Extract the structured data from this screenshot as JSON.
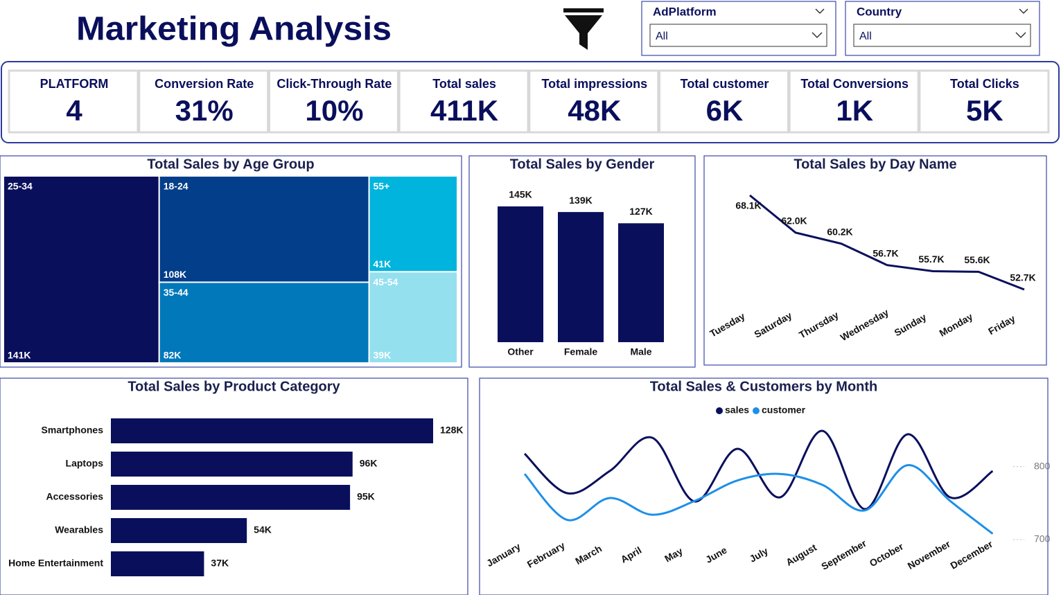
{
  "header": {
    "title": "Marketing Analysis"
  },
  "filters": [
    {
      "label": "AdPlatform",
      "value": "All"
    },
    {
      "label": "Country",
      "value": "All"
    }
  ],
  "kpis": [
    {
      "label": "PLATFORM",
      "value": "4"
    },
    {
      "label": "Conversion Rate",
      "value": "31%"
    },
    {
      "label": "Click-Through Rate",
      "value": "10%"
    },
    {
      "label": "Total sales",
      "value": "411K"
    },
    {
      "label": "Total impressions",
      "value": "48K"
    },
    {
      "label": "Total customer",
      "value": "6K"
    },
    {
      "label": "Total Conversions",
      "value": "1K"
    },
    {
      "label": "Total Clicks",
      "value": "5K"
    }
  ],
  "chart_data": [
    {
      "type": "treemap",
      "title": "Total Sales by Age Group",
      "categories": [
        "25-34",
        "18-24",
        "35-44",
        "55+",
        "45-54"
      ],
      "values": [
        141000,
        108000,
        82000,
        41000,
        39000
      ],
      "value_labels": [
        "141K",
        "108K",
        "82K",
        "41K",
        "39K"
      ],
      "colors": [
        "#0a0f5c",
        "#033e8a",
        "#0078b9",
        "#00b4dd",
        "#94e0ef"
      ]
    },
    {
      "type": "bar",
      "title": "Total Sales by Gender",
      "categories": [
        "Other",
        "Female",
        "Male"
      ],
      "values": [
        145000,
        139000,
        127000
      ],
      "value_labels": [
        "145K",
        "139K",
        "127K"
      ],
      "color": "#0a0f5c"
    },
    {
      "type": "line",
      "title": "Total Sales by Day Name",
      "categories": [
        "Tuesday",
        "Saturday",
        "Thursday",
        "Wednesday",
        "Sunday",
        "Monday",
        "Friday"
      ],
      "values": [
        68100,
        62000,
        60200,
        56700,
        55700,
        55600,
        52700
      ],
      "value_labels": [
        "68.1K",
        "62.0K",
        "60.2K",
        "56.7K",
        "55.7K",
        "55.6K",
        "52.7K"
      ],
      "color": "#0a0f5c"
    },
    {
      "type": "hbar",
      "title": "Total Sales by Product Category",
      "categories": [
        "Smartphones",
        "Laptops",
        "Accessories",
        "Wearables",
        "Home Entertainment"
      ],
      "values": [
        128000,
        96000,
        95000,
        54000,
        37000
      ],
      "value_labels": [
        "128K",
        "96K",
        "95K",
        "54K",
        "37K"
      ],
      "color": "#0a0f5c"
    },
    {
      "type": "line",
      "title": "Total Sales & Customers by Month",
      "categories": [
        "January",
        "February",
        "March",
        "April",
        "May",
        "June",
        "July",
        "August",
        "September",
        "October",
        "November",
        "December"
      ],
      "series": [
        {
          "name": "sales",
          "color": "#0a0f5c",
          "values": [
            36500,
            30800,
            34000,
            38800,
            29600,
            37200,
            30200,
            39800,
            28500,
            39300,
            30200,
            34000
          ]
        },
        {
          "name": "customer",
          "color": "#1e8fe8",
          "axis": "y2",
          "values": [
            790,
            727,
            757,
            734,
            753,
            781,
            790,
            775,
            740,
            802,
            753,
            708
          ]
        }
      ],
      "ylim": [
        22000,
        42000
      ],
      "y2lim": [
        680,
        870
      ],
      "y2ticks": [
        700,
        800
      ],
      "smooth": true,
      "legend": "top"
    }
  ]
}
